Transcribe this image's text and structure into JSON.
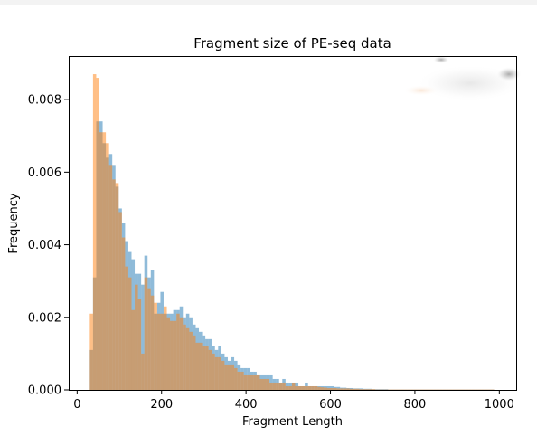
{
  "chart_data": {
    "type": "bar",
    "title": "Fragment size of PE-seq data",
    "xlabel": "Fragment Length",
    "ylabel": "Frequency",
    "xlim": [
      -20,
      1040
    ],
    "ylim": [
      0,
      0.0092
    ],
    "xticks": [
      0,
      200,
      400,
      600,
      800,
      1000
    ],
    "yticks": [
      0.0,
      0.002,
      0.004,
      0.006,
      0.008
    ],
    "ytick_labels": [
      "0.000",
      "0.002",
      "0.004",
      "0.006",
      "0.008"
    ],
    "grid": false,
    "legend": "none",
    "bin_width": 7.6,
    "x_start": 30,
    "colors": {
      "series_a": "#1f77b4",
      "series_b": "#ff7f0e",
      "alpha": 0.5
    },
    "series": [
      {
        "values": [
          0.0011,
          0.0031,
          0.0074,
          0.0074,
          0.0068,
          0.0064,
          0.0065,
          0.0062,
          0.0056,
          0.005,
          0.0046,
          0.0041,
          0.0038,
          0.0036,
          0.0032,
          0.0032,
          0.0029,
          0.0037,
          0.0031,
          0.0033,
          0.0021,
          0.0024,
          0.0027,
          0.0021,
          0.0021,
          0.0021,
          0.0022,
          0.0022,
          0.0023,
          0.002,
          0.0021,
          0.002,
          0.0018,
          0.0017,
          0.0016,
          0.0015,
          0.0014,
          0.0014,
          0.0012,
          0.0011,
          0.0012,
          0.001,
          0.0009,
          0.0008,
          0.0009,
          0.0008,
          0.0007,
          0.0006,
          0.0006,
          0.0006,
          0.0005,
          0.0005,
          0.0004,
          0.0004,
          0.0004,
          0.0004,
          0.0004,
          0.0003,
          0.0003,
          0.0002,
          0.0003,
          0.0002,
          0.0002,
          0.0002,
          0.0002,
          0.0001,
          0.0001,
          0.0002,
          0.0001,
          0.0001,
          0.0001,
          0.0001,
          0.0001,
          0.0001,
          0.0001,
          0.0001,
          8e-05,
          8e-05,
          6e-05,
          6e-05,
          5e-05,
          5e-05,
          4e-05,
          4e-05,
          4e-05,
          3e-05,
          3e-05,
          3e-05,
          2e-05,
          2e-05,
          2e-05,
          2e-05,
          2e-05,
          1e-05,
          1e-05,
          1e-05,
          1e-05,
          1e-05,
          1e-05,
          1e-05,
          1e-05,
          1e-05,
          1e-05,
          1e-05,
          1e-05,
          1e-05,
          1e-05,
          1e-05,
          1e-05,
          1e-05,
          1e-05,
          1e-05,
          1e-05,
          1e-05,
          1e-05,
          1e-05,
          1e-05,
          1e-05,
          1e-05,
          1e-05,
          1e-05,
          1e-05,
          1e-05,
          1e-05,
          1e-05,
          1e-05
        ]
      },
      {
        "values": [
          0.0021,
          0.0087,
          0.0086,
          0.0071,
          0.0071,
          0.0068,
          0.0062,
          0.0058,
          0.0057,
          0.0049,
          0.0042,
          0.0034,
          0.0031,
          0.0022,
          0.0029,
          0.0025,
          0.001,
          0.0031,
          0.0028,
          0.0026,
          0.0024,
          0.0021,
          0.0021,
          0.0023,
          0.002,
          0.0019,
          0.0019,
          0.0021,
          0.002,
          0.0018,
          0.0017,
          0.0016,
          0.0015,
          0.0013,
          0.0013,
          0.0012,
          0.0012,
          0.0011,
          0.001,
          0.0009,
          0.0009,
          0.0008,
          0.0007,
          0.0007,
          0.0007,
          0.0006,
          0.0005,
          0.0005,
          0.0004,
          0.0004,
          0.0004,
          0.0004,
          0.0004,
          0.0003,
          0.0003,
          0.0003,
          0.0002,
          0.0002,
          0.0002,
          0.0002,
          0.0002,
          0.0001,
          0.0001,
          0.0002,
          0.0001,
          0.0001,
          0.0001,
          0.0001,
          0.0001,
          0.0001,
          0.0001,
          8e-05,
          7e-05,
          6e-05,
          5e-05,
          5e-05,
          5e-05,
          4e-05,
          4e-05,
          4e-05,
          4e-05,
          3e-05,
          3e-05,
          3e-05,
          2e-05,
          2e-05,
          2e-05,
          2e-05,
          2e-05,
          1e-05,
          1e-05,
          1e-05,
          1e-05,
          1e-05,
          1e-05,
          1e-05,
          1e-05,
          1e-05,
          1e-05,
          1e-05,
          1e-05,
          1e-05,
          1e-05,
          1e-05,
          1e-05,
          1e-05,
          1e-05,
          1e-05,
          1e-05,
          1e-05,
          1e-05,
          1e-05,
          1e-05,
          1e-05,
          1e-05,
          1e-05,
          1e-05,
          1e-05,
          1e-05,
          1e-05,
          1e-05,
          1e-05,
          1e-05,
          1e-05,
          1e-05,
          1e-05
        ]
      }
    ]
  }
}
